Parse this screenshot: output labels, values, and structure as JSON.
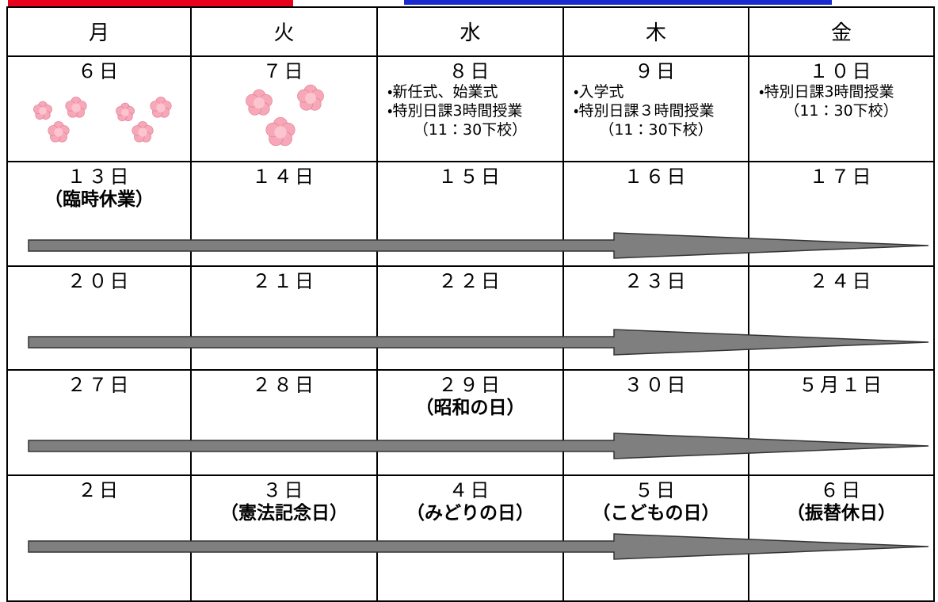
{
  "header": {
    "days": [
      "月",
      "火",
      "水",
      "木",
      "金"
    ]
  },
  "weeks": [
    {
      "cells": [
        {
          "date": "６日",
          "flowers": true
        },
        {
          "date": "７日",
          "flowers": true
        },
        {
          "date": "８日",
          "notes": [
            "・新任式、始業式",
            "・特別日課3時間授業",
            "（11：30下校）"
          ]
        },
        {
          "date": "９日",
          "notes": [
            "・入学式",
            "・特別日課３時間授業",
            "（11：30下校）"
          ]
        },
        {
          "date": "１０日",
          "notes": [
            "・特別日課3時間授業",
            "（11：30下校）"
          ]
        }
      ]
    },
    {
      "cells": [
        {
          "date": "１３日",
          "holiday": "（臨時休業）"
        },
        {
          "date": "１４日"
        },
        {
          "date": "１５日"
        },
        {
          "date": "１６日"
        },
        {
          "date": "１７日"
        }
      ]
    },
    {
      "cells": [
        {
          "date": "２０日"
        },
        {
          "date": "２１日"
        },
        {
          "date": "２２日"
        },
        {
          "date": "２３日"
        },
        {
          "date": "２４日"
        }
      ]
    },
    {
      "cells": [
        {
          "date": "２７日"
        },
        {
          "date": "２８日"
        },
        {
          "date": "２９日",
          "holiday": "（昭和の日）"
        },
        {
          "date": "３０日"
        },
        {
          "date": "５月１日"
        }
      ]
    },
    {
      "cells": [
        {
          "date": "２日"
        },
        {
          "date": "３日",
          "holiday": "（憲法記念日）"
        },
        {
          "date": "４日",
          "holiday": "（みどりの日）"
        },
        {
          "date": "５日",
          "holiday": "（こどもの日）"
        },
        {
          "date": "６日",
          "holiday": "（振替休日）"
        }
      ]
    }
  ]
}
